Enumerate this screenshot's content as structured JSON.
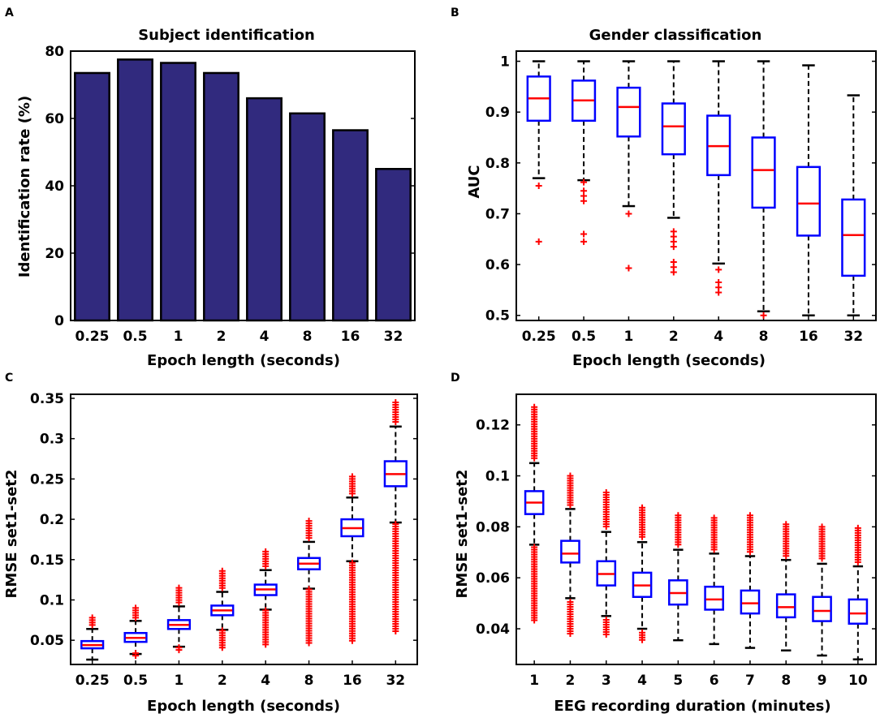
{
  "colors": {
    "bar_fill": "#312a7e",
    "box_edge": "#0000ff",
    "median": "#ff0000",
    "outlier": "#ff0000",
    "whisker": "#000000"
  },
  "chart_data": [
    {
      "id": "A",
      "panel_label": "A",
      "type": "bar",
      "title": "Subject identification",
      "xlabel": "Epoch length (seconds)",
      "ylabel": "Identification rate (%)",
      "categories": [
        "0.25",
        "0.5",
        "1",
        "2",
        "4",
        "8",
        "16",
        "32"
      ],
      "values": [
        73.5,
        77.5,
        76.5,
        73.5,
        66,
        61.5,
        56.5,
        45
      ],
      "ylim": [
        0,
        80
      ],
      "yticks": [
        0,
        20,
        40,
        60,
        80
      ],
      "ytick_labels": [
        "0",
        "20",
        "40",
        "60",
        "80"
      ]
    },
    {
      "id": "B",
      "panel_label": "B",
      "type": "box",
      "title": "Gender classification",
      "xlabel": "Epoch length (seconds)",
      "ylabel": "AUC",
      "categories": [
        "0.25",
        "0.5",
        "1",
        "2",
        "4",
        "8",
        "16",
        "32"
      ],
      "ylim": [
        0.49,
        1.02
      ],
      "yticks": [
        0.5,
        0.6,
        0.7,
        0.8,
        0.9,
        1.0
      ],
      "ytick_labels": [
        "0.5",
        "0.6",
        "0.7",
        "0.8",
        "0.9",
        "1"
      ],
      "boxes": [
        {
          "whislo": 0.77,
          "q1": 0.883,
          "med": 0.927,
          "q3": 0.97,
          "whishi": 1.0,
          "fliers": [
            0.755,
            0.645
          ]
        },
        {
          "whislo": 0.766,
          "q1": 0.883,
          "med": 0.923,
          "q3": 0.962,
          "whishi": 1.0,
          "fliers": [
            0.762,
            0.745,
            0.735,
            0.725,
            0.66,
            0.645
          ]
        },
        {
          "whislo": 0.715,
          "q1": 0.852,
          "med": 0.91,
          "q3": 0.948,
          "whishi": 1.0,
          "fliers": [
            0.7,
            0.593
          ]
        },
        {
          "whislo": 0.692,
          "q1": 0.817,
          "med": 0.872,
          "q3": 0.917,
          "whishi": 1.0,
          "fliers": [
            0.665,
            0.655,
            0.645,
            0.635,
            0.605,
            0.595,
            0.585
          ]
        },
        {
          "whislo": 0.602,
          "q1": 0.776,
          "med": 0.833,
          "q3": 0.893,
          "whishi": 1.0,
          "fliers": [
            0.59,
            0.565,
            0.555,
            0.545
          ]
        },
        {
          "whislo": 0.508,
          "q1": 0.712,
          "med": 0.786,
          "q3": 0.85,
          "whishi": 1.0,
          "fliers": [
            0.5
          ]
        },
        {
          "whislo": 0.5,
          "q1": 0.657,
          "med": 0.72,
          "q3": 0.792,
          "whishi": 0.992,
          "fliers": []
        },
        {
          "whislo": 0.5,
          "q1": 0.578,
          "med": 0.658,
          "q3": 0.728,
          "whishi": 0.933,
          "fliers": []
        }
      ]
    },
    {
      "id": "C",
      "panel_label": "C",
      "type": "box",
      "title": "",
      "xlabel": "Epoch length (seconds)",
      "ylabel": "RMSE set1-set2",
      "categories": [
        "0.25",
        "0.5",
        "1",
        "2",
        "4",
        "8",
        "16",
        "32"
      ],
      "ylim": [
        0.02,
        0.355
      ],
      "yticks": [
        0.05,
        0.1,
        0.15,
        0.2,
        0.25,
        0.3,
        0.35
      ],
      "ytick_labels": [
        "0.05",
        "0.1",
        "0.15",
        "0.2",
        "0.25",
        "0.3",
        "0.35"
      ],
      "boxes": [
        {
          "whislo": 0.026,
          "q1": 0.04,
          "med": 0.044,
          "q3": 0.049,
          "whishi": 0.064,
          "flier_bands": [
            [
              0.066,
              0.078
            ]
          ]
        },
        {
          "whislo": 0.033,
          "q1": 0.048,
          "med": 0.053,
          "q3": 0.059,
          "whishi": 0.074,
          "flier_bands": [
            [
              0.076,
              0.09
            ],
            [
              0.03,
              0.034
            ]
          ]
        },
        {
          "whislo": 0.042,
          "q1": 0.064,
          "med": 0.069,
          "q3": 0.075,
          "whishi": 0.092,
          "flier_bands": [
            [
              0.094,
              0.115
            ],
            [
              0.035,
              0.041
            ]
          ]
        },
        {
          "whislo": 0.063,
          "q1": 0.081,
          "med": 0.087,
          "q3": 0.093,
          "whishi": 0.11,
          "flier_bands": [
            [
              0.112,
              0.136
            ],
            [
              0.04,
              0.062
            ]
          ]
        },
        {
          "whislo": 0.088,
          "q1": 0.106,
          "med": 0.113,
          "q3": 0.119,
          "whishi": 0.137,
          "flier_bands": [
            [
              0.139,
              0.16
            ],
            [
              0.043,
              0.087
            ]
          ]
        },
        {
          "whislo": 0.114,
          "q1": 0.138,
          "med": 0.145,
          "q3": 0.152,
          "whishi": 0.172,
          "flier_bands": [
            [
              0.174,
              0.198
            ],
            [
              0.045,
              0.113
            ]
          ]
        },
        {
          "whislo": 0.148,
          "q1": 0.179,
          "med": 0.189,
          "q3": 0.2,
          "whishi": 0.227,
          "flier_bands": [
            [
              0.229,
              0.253
            ],
            [
              0.048,
              0.146
            ]
          ]
        },
        {
          "whislo": 0.196,
          "q1": 0.241,
          "med": 0.256,
          "q3": 0.272,
          "whishi": 0.315,
          "flier_bands": [
            [
              0.318,
              0.345
            ],
            [
              0.061,
              0.194
            ]
          ]
        }
      ]
    },
    {
      "id": "D",
      "panel_label": "D",
      "type": "box",
      "title": "",
      "xlabel": "EEG recording duration (minutes)",
      "ylabel": "RMSE set1-set2",
      "categories": [
        "1",
        "2",
        "3",
        "4",
        "5",
        "6",
        "7",
        "8",
        "9",
        "10"
      ],
      "ylim": [
        0.026,
        0.132
      ],
      "yticks": [
        0.04,
        0.06,
        0.08,
        0.1,
        0.12
      ],
      "ytick_labels": [
        "0.04",
        "0.06",
        "0.08",
        "0.1",
        "0.12"
      ],
      "boxes": [
        {
          "whislo": 0.073,
          "q1": 0.085,
          "med": 0.0895,
          "q3": 0.094,
          "whishi": 0.105,
          "flier_bands": [
            [
              0.106,
              0.127
            ],
            [
              0.043,
              0.072
            ]
          ]
        },
        {
          "whislo": 0.052,
          "q1": 0.066,
          "med": 0.0695,
          "q3": 0.0745,
          "whishi": 0.087,
          "flier_bands": [
            [
              0.0885,
              0.1
            ],
            [
              0.038,
              0.0505
            ]
          ]
        },
        {
          "whislo": 0.045,
          "q1": 0.057,
          "med": 0.0615,
          "q3": 0.0665,
          "whishi": 0.078,
          "flier_bands": [
            [
              0.0795,
              0.0935
            ],
            [
              0.037,
              0.0435
            ]
          ]
        },
        {
          "whislo": 0.04,
          "q1": 0.0525,
          "med": 0.057,
          "q3": 0.062,
          "whishi": 0.074,
          "flier_bands": [
            [
              0.0755,
              0.0875
            ],
            [
              0.035,
              0.0385
            ]
          ]
        },
        {
          "whislo": 0.0355,
          "q1": 0.0495,
          "med": 0.054,
          "q3": 0.059,
          "whishi": 0.071,
          "flier_bands": [
            [
              0.0725,
              0.0845
            ]
          ]
        },
        {
          "whislo": 0.034,
          "q1": 0.0475,
          "med": 0.0515,
          "q3": 0.0565,
          "whishi": 0.0695,
          "flier_bands": [
            [
              0.071,
              0.0835
            ]
          ]
        },
        {
          "whislo": 0.0325,
          "q1": 0.046,
          "med": 0.05,
          "q3": 0.055,
          "whishi": 0.0685,
          "flier_bands": [
            [
              0.07,
              0.0845
            ]
          ]
        },
        {
          "whislo": 0.0315,
          "q1": 0.0445,
          "med": 0.0485,
          "q3": 0.0535,
          "whishi": 0.067,
          "flier_bands": [
            [
              0.0685,
              0.081
            ]
          ]
        },
        {
          "whislo": 0.0295,
          "q1": 0.043,
          "med": 0.047,
          "q3": 0.0525,
          "whishi": 0.0655,
          "flier_bands": [
            [
              0.067,
              0.08
            ]
          ]
        },
        {
          "whislo": 0.028,
          "q1": 0.042,
          "med": 0.046,
          "q3": 0.0515,
          "whishi": 0.0645,
          "flier_bands": [
            [
              0.066,
              0.0795
            ]
          ]
        }
      ]
    }
  ]
}
